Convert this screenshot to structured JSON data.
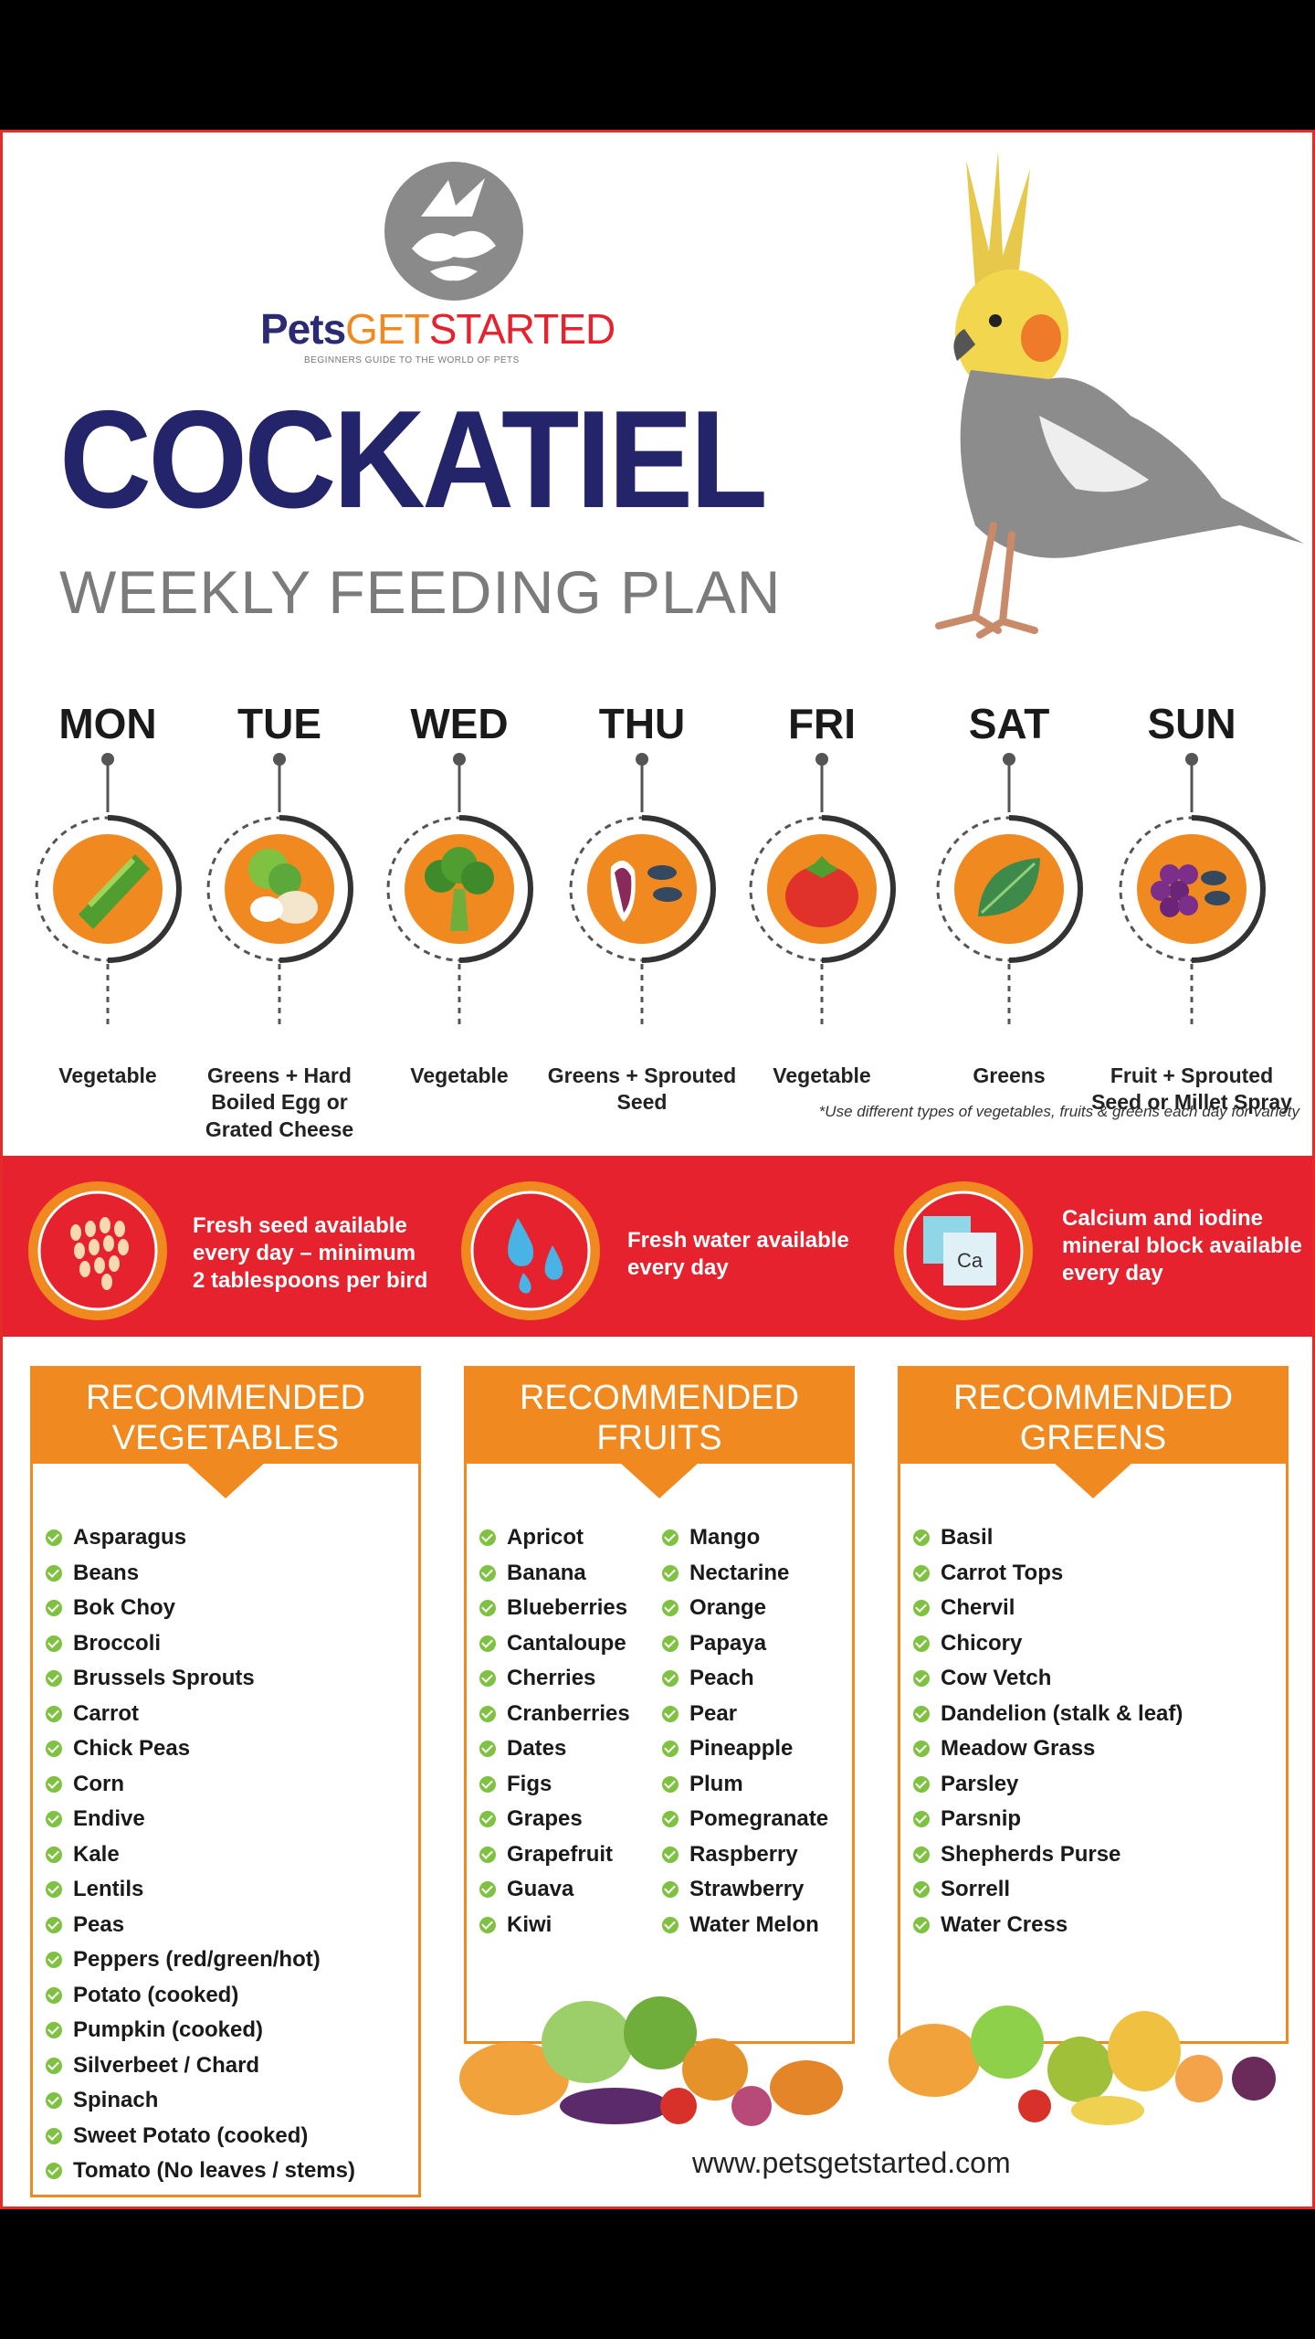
{
  "header": {
    "brand_pets": "Pets",
    "brand_get": "GET",
    "brand_started": "STARTED",
    "tagline": "BEGINNERS GUIDE TO THE WORLD OF PETS",
    "title": "COCKATIEL",
    "subtitle": "WEEKLY FEEDING PLAN"
  },
  "days": [
    {
      "name": "MON",
      "food": "Vegetable",
      "icon": "cucumber-icon"
    },
    {
      "name": "TUE",
      "food": "Greens + Hard Boiled Egg or Grated Cheese",
      "icon": "greens-egg-icon"
    },
    {
      "name": "WED",
      "food": "Vegetable",
      "icon": "broccoli-icon"
    },
    {
      "name": "THU",
      "food": "Greens + Sprouted Seed",
      "icon": "sprouted-seed-icon"
    },
    {
      "name": "FRI",
      "food": "Vegetable",
      "icon": "tomato-icon"
    },
    {
      "name": "SAT",
      "food": "Greens",
      "icon": "leaf-icon"
    },
    {
      "name": "SUN",
      "food": "Fruit + Sprouted Seed or Millet Spray",
      "icon": "grapes-icon"
    }
  ],
  "note": "*Use different types of vegetables, fruits & greens each day for variety",
  "band": [
    {
      "line1": "Fresh seed available",
      "line2": "every day – minimum",
      "line3": "2 tablespoons per bird",
      "icon": "seeds-icon"
    },
    {
      "line1": "Fresh water available",
      "line2": "every day",
      "icon": "water-drops-icon"
    },
    {
      "line1": "Calcium and iodine",
      "line2": "mineral block available",
      "line3": "every day",
      "icon": "mineral-block-icon",
      "block_label": "Ca"
    }
  ],
  "panels": {
    "vegetables": {
      "heading1": "RECOMMENDED",
      "heading2": "VEGETABLES",
      "items": [
        "Asparagus",
        "Beans",
        "Bok Choy",
        "Broccoli",
        "Brussels Sprouts",
        "Carrot",
        "Chick Peas",
        "Corn",
        "Endive",
        "Kale",
        "Lentils",
        "Peas",
        "Peppers (red/green/hot)",
        "Potato (cooked)",
        "Pumpkin (cooked)",
        "Silverbeet / Chard",
        "Spinach",
        "Sweet Potato (cooked)",
        "Tomato (No leaves / stems)"
      ]
    },
    "fruits": {
      "heading1": "RECOMMENDED",
      "heading2": "FRUITS",
      "col1": [
        "Apricot",
        "Banana",
        "Blueberries",
        "Cantaloupe",
        "Cherries",
        "Cranberries",
        "Dates",
        "Figs",
        "Grapes",
        "Grapefruit",
        "Guava",
        "Kiwi"
      ],
      "col2": [
        "Mango",
        "Nectarine",
        "Orange",
        "Papaya",
        "Peach",
        "Pear",
        "Pineapple",
        "Plum",
        "Pomegranate",
        "Raspberry",
        "Strawberry",
        "Water Melon"
      ]
    },
    "greens": {
      "heading1": "RECOMMENDED",
      "heading2": "GREENS",
      "items": [
        "Basil",
        "Carrot Tops",
        "Chervil",
        "Chicory",
        "Cow Vetch",
        "Dandelion (stalk & leaf)",
        "Meadow Grass",
        "Parsley",
        "Parsnip",
        "Shepherds Purse",
        "Sorrell",
        "Water Cress"
      ]
    }
  },
  "footer": {
    "url": "www.petsgetstarted.com"
  },
  "colors": {
    "navy": "#24246b",
    "orange": "#f08a20",
    "red": "#e5222d",
    "green": "#7fc241"
  }
}
